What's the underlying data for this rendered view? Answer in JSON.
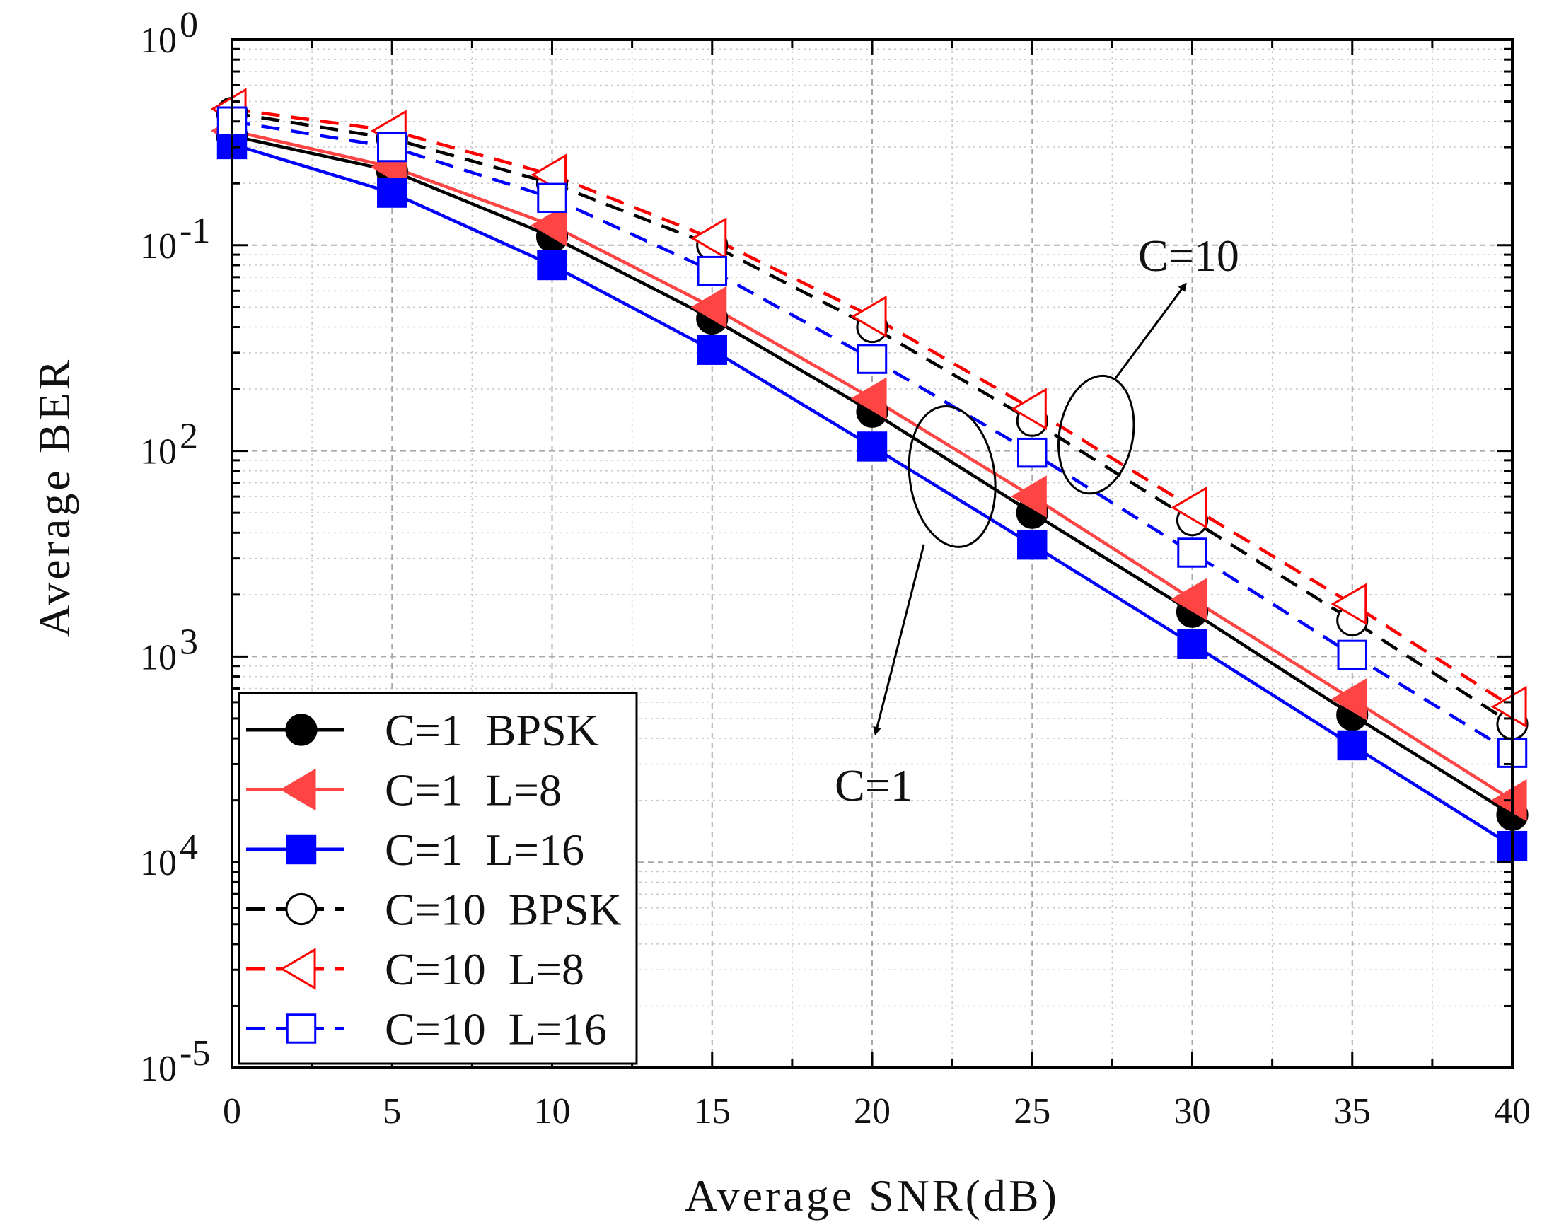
{
  "chart_data": {
    "type": "line",
    "title": "",
    "xlabel": "Average SNR(dB)",
    "ylabel": "Average BER",
    "xlim": [
      0,
      40
    ],
    "ylim": [
      1e-05,
      1
    ],
    "yscale": "log",
    "grid": true,
    "x_ticks": [
      "0",
      "5",
      "10",
      "15",
      "20",
      "25",
      "30",
      "35",
      "40"
    ],
    "y_ticks": [
      {
        "base": "10",
        "exp": "0"
      },
      {
        "base": "10",
        "exp": "-1"
      },
      {
        "base": "10",
        "exp": "2"
      },
      {
        "base": "10",
        "exp": "3"
      },
      {
        "base": "10",
        "exp": "4"
      },
      {
        "base": "10",
        "exp": "-5"
      }
    ],
    "legend_position": "bottom-left",
    "x": [
      0,
      5,
      10,
      15,
      20,
      25,
      30,
      35,
      40
    ],
    "series": [
      {
        "name": "C=1  BPSK",
        "color": "#000000",
        "dash": "solid",
        "marker": "circle",
        "filled": true,
        "values": [
          0.34,
          0.23,
          0.11,
          0.044,
          0.0155,
          0.005,
          0.00165,
          0.00052,
          0.00017
        ]
      },
      {
        "name": "C=1  L=8",
        "color": "#ff4444",
        "dash": "solid",
        "marker": "triangle-left",
        "filled": true,
        "values": [
          0.36,
          0.24,
          0.125,
          0.05,
          0.018,
          0.006,
          0.0019,
          0.00062,
          0.0002
        ]
      },
      {
        "name": "C=1  L=16",
        "color": "#0000ff",
        "dash": "solid",
        "marker": "square",
        "filled": true,
        "values": [
          0.31,
          0.18,
          0.08,
          0.031,
          0.0105,
          0.0035,
          0.00115,
          0.00037,
          0.00012
        ]
      },
      {
        "name": "C=10  BPSK",
        "color": "#000000",
        "dash": "dash",
        "marker": "circle",
        "filled": false,
        "values": [
          0.44,
          0.33,
          0.2,
          0.1,
          0.04,
          0.014,
          0.0046,
          0.0015,
          0.00047
        ]
      },
      {
        "name": "C=10  L=8",
        "color": "#ff0000",
        "dash": "dash",
        "marker": "triangle-left",
        "filled": false,
        "values": [
          0.46,
          0.36,
          0.22,
          0.108,
          0.045,
          0.016,
          0.0053,
          0.0018,
          0.00057
        ]
      },
      {
        "name": "C=10  L=16",
        "color": "#0000ff",
        "dash": "dash",
        "marker": "square",
        "filled": false,
        "values": [
          0.4,
          0.3,
          0.17,
          0.075,
          0.028,
          0.0098,
          0.0032,
          0.00102,
          0.00034
        ]
      }
    ],
    "annotations": [
      {
        "text": "C=10",
        "snr": 27,
        "ber": 0.012,
        "arrow_to_snr": 29.8,
        "arrow_to_ber": 0.065
      },
      {
        "text": "C=1",
        "snr": 22.5,
        "ber": 0.0075,
        "arrow_to_snr": 20.1,
        "arrow_to_ber": 0.00042
      }
    ]
  }
}
